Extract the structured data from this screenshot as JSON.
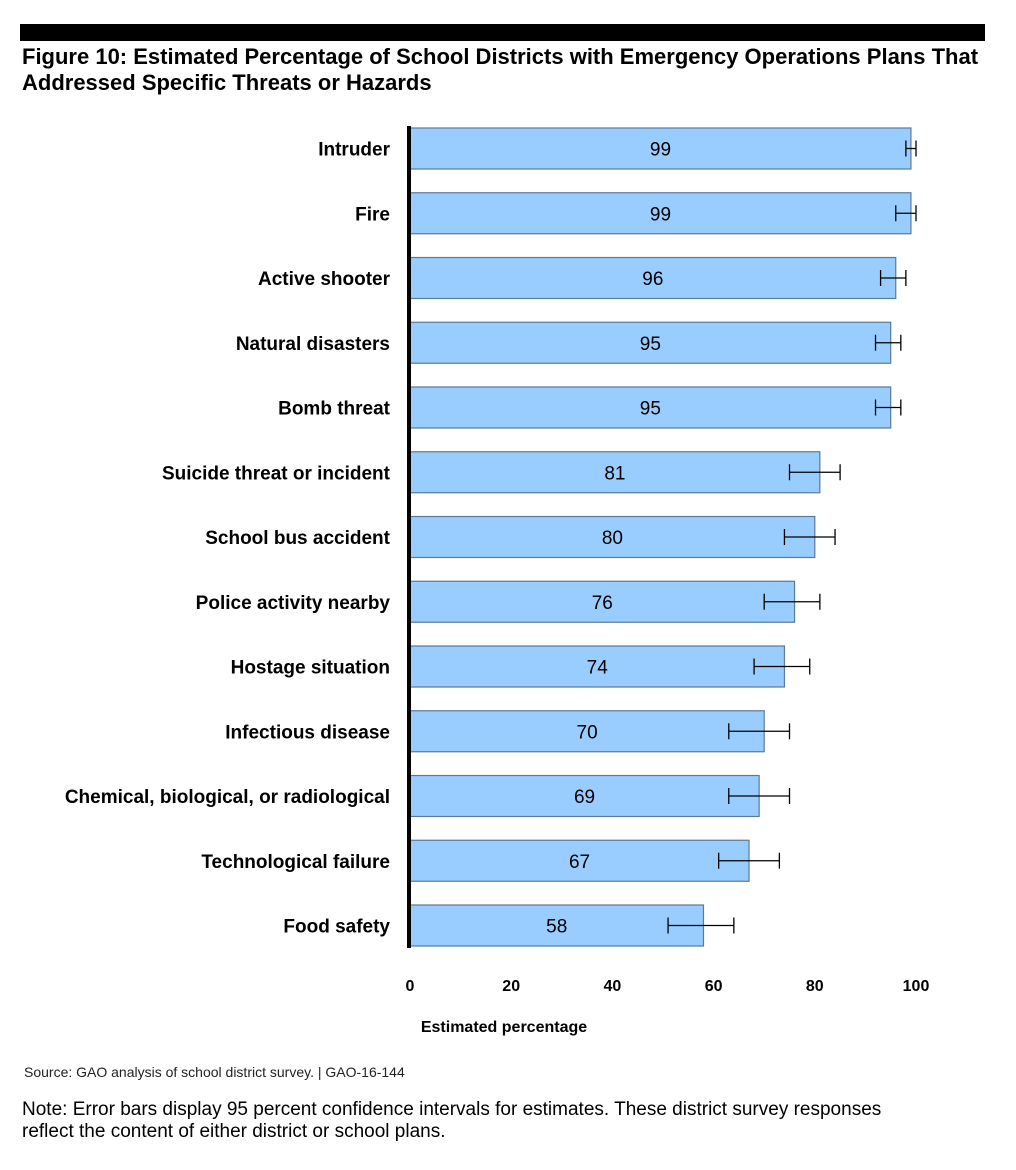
{
  "header": {
    "title": "Figure 10: Estimated Percentage of School Districts with Emergency Operations Plans That Addressed Specific Threats or Hazards"
  },
  "colors": {
    "bar_fill": "#99ccff",
    "bar_stroke": "#5b7a99",
    "axis": "#000000",
    "error_bar": "#000000"
  },
  "chart_data": {
    "type": "bar",
    "orientation": "horizontal",
    "title": "",
    "xlabel": "Estimated percentage",
    "ylabel": "",
    "xlim": [
      0,
      100
    ],
    "xticks": [
      0,
      20,
      40,
      60,
      80,
      100
    ],
    "grid": false,
    "legend": "none",
    "categories": [
      "Intruder",
      "Fire",
      "Active shooter",
      "Natural disasters",
      "Bomb threat",
      "Suicide threat or incident",
      "School bus accident",
      "Police activity nearby",
      "Hostage situation",
      "Infectious disease",
      "Chemical, biological, or radiological",
      "Technological failure",
      "Food safety"
    ],
    "values": [
      99,
      99,
      96,
      95,
      95,
      81,
      80,
      76,
      74,
      70,
      69,
      67,
      58
    ],
    "ci_low": [
      98,
      96,
      93,
      92,
      92,
      75,
      74,
      70,
      68,
      63,
      63,
      61,
      51
    ],
    "ci_high": [
      100,
      100,
      98,
      97,
      97,
      85,
      84,
      81,
      79,
      75,
      75,
      73,
      64
    ]
  },
  "footer": {
    "source": "Source: GAO analysis of school district survey.  |  GAO-16-144",
    "note": "Note: Error bars display 95 percent confidence intervals for estimates. These district survey responses reflect the content of either district or school plans."
  }
}
